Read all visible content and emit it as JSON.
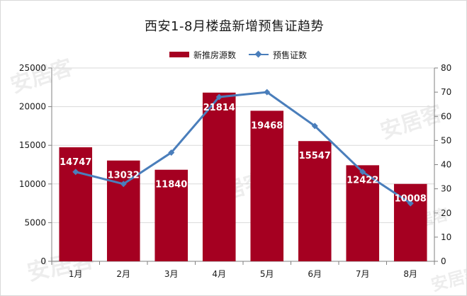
{
  "chart_data": {
    "type": "bar",
    "title": "西安1-8月楼盘新增预售证趋势",
    "categories": [
      "1月",
      "2月",
      "3月",
      "4月",
      "5月",
      "6月",
      "7月",
      "8月"
    ],
    "series": [
      {
        "name": "新推房源数",
        "type": "bar",
        "axis": "left",
        "color": "#a50021",
        "values": [
          14747,
          13032,
          11840,
          21814,
          19468,
          15547,
          12422,
          10008
        ],
        "data_labels": [
          "14747",
          "13032",
          "11840",
          "21814",
          "19468",
          "15547",
          "12422",
          "10008"
        ]
      },
      {
        "name": "预售证数",
        "type": "line",
        "axis": "right",
        "color": "#4a7ebb",
        "marker": "diamond",
        "values": [
          37,
          32,
          45,
          68,
          70,
          56,
          37,
          24
        ]
      }
    ],
    "ylim_left": [
      0,
      25000
    ],
    "yticks_left": [
      "0",
      "5000",
      "10000",
      "15000",
      "20000",
      "25000"
    ],
    "ylim_right": [
      0,
      80
    ],
    "yticks_right": [
      "0",
      "10",
      "20",
      "30",
      "40",
      "50",
      "60",
      "70",
      "80"
    ],
    "grid": true,
    "legend_position": "top-center",
    "watermark": "安居客"
  }
}
